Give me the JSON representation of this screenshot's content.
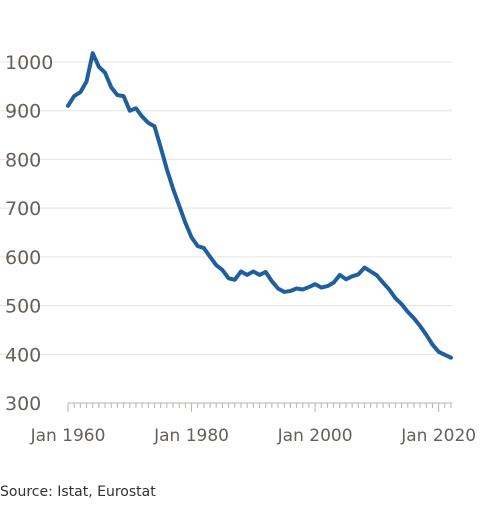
{
  "chart_data": {
    "type": "line",
    "title": "",
    "xlabel": "",
    "ylabel": "",
    "ylim": [
      300,
      1000
    ],
    "yticks": [
      "1000",
      "900",
      "800",
      "700",
      "600",
      "500",
      "400",
      "300"
    ],
    "ytick_values": [
      1000,
      900,
      800,
      700,
      600,
      500,
      400,
      300
    ],
    "xticks": [
      "Jan 1960",
      "Jan 1980",
      "Jan 2000",
      "Jan 2020"
    ],
    "xtick_values": [
      1960,
      1980,
      2000,
      2020
    ],
    "xlim": [
      1960,
      2020
    ],
    "grid": true,
    "legend": "none",
    "colors": {
      "line": "#1f5f9e",
      "grid": "#e6e3df",
      "text": "#66605c",
      "axis": "#b9b4ae"
    },
    "series": [
      {
        "x": [
          1960,
          1961,
          1962,
          1963,
          1964,
          1965,
          1966,
          1967,
          1968,
          1969,
          1970,
          1971,
          1972,
          1973,
          1974,
          1975,
          1976,
          1977,
          1978,
          1979,
          1980,
          1981,
          1982,
          1983,
          1984,
          1985,
          1986,
          1987,
          1988,
          1989,
          1990,
          1991,
          1992,
          1993,
          1994,
          1995,
          1996,
          1997,
          1998,
          1999,
          2000,
          2001,
          2002,
          2003,
          2004,
          2005,
          2006,
          2007,
          2008,
          2009,
          2010,
          2011,
          2012,
          2013,
          2014,
          2015,
          2016,
          2017,
          2018,
          2019,
          2020,
          2021,
          2022
        ],
        "values": [
          910,
          930,
          938,
          960,
          1018,
          990,
          978,
          948,
          932,
          930,
          900,
          905,
          888,
          875,
          868,
          825,
          780,
          740,
          705,
          670,
          640,
          622,
          618,
          600,
          583,
          573,
          556,
          553,
          570,
          563,
          570,
          563,
          569,
          550,
          535,
          528,
          530,
          535,
          533,
          538,
          544,
          537,
          540,
          547,
          563,
          554,
          560,
          564,
          578,
          570,
          562,
          547,
          533,
          515,
          503,
          487,
          474,
          458,
          440,
          420,
          405,
          399,
          393
        ]
      }
    ]
  },
  "source": "Source: Istat, Eurostat"
}
